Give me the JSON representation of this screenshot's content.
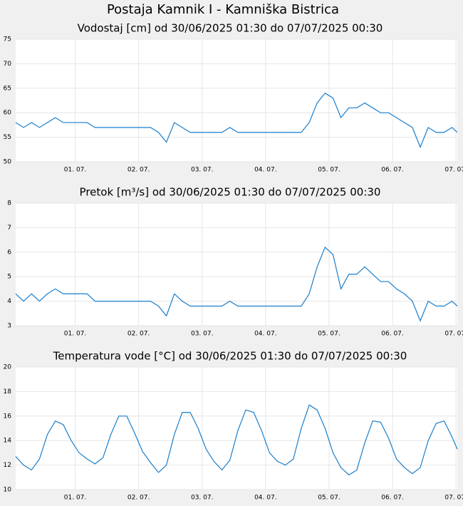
{
  "title": "Postaja Kamnik I - Kamniška Bistrica",
  "chart_data": [
    {
      "type": "line",
      "title": "Vodostaj [cm] od 30/06/2025 01:30 do 07/07/2025 00:30",
      "x": [
        "2025-06-30T01:30",
        "2025-06-30T04:30",
        "2025-06-30T07:30",
        "2025-06-30T10:30",
        "2025-06-30T13:30",
        "2025-06-30T16:30",
        "2025-06-30T19:30",
        "2025-06-30T22:30",
        "2025-07-01T01:30",
        "2025-07-01T04:30",
        "2025-07-01T07:30",
        "2025-07-01T10:30",
        "2025-07-01T13:30",
        "2025-07-01T16:30",
        "2025-07-01T19:30",
        "2025-07-01T22:30",
        "2025-07-02T01:30",
        "2025-07-02T04:30",
        "2025-07-02T07:30",
        "2025-07-02T10:30",
        "2025-07-02T13:30",
        "2025-07-02T16:30",
        "2025-07-02T19:30",
        "2025-07-02T22:30",
        "2025-07-03T01:30",
        "2025-07-03T04:30",
        "2025-07-03T07:30",
        "2025-07-03T10:30",
        "2025-07-03T13:30",
        "2025-07-03T16:30",
        "2025-07-03T19:30",
        "2025-07-03T22:30",
        "2025-07-04T01:30",
        "2025-07-04T04:30",
        "2025-07-04T07:30",
        "2025-07-04T10:30",
        "2025-07-04T13:30",
        "2025-07-04T16:30",
        "2025-07-04T19:30",
        "2025-07-04T22:30",
        "2025-07-05T01:30",
        "2025-07-05T04:30",
        "2025-07-05T07:30",
        "2025-07-05T10:30",
        "2025-07-05T13:30",
        "2025-07-05T16:30",
        "2025-07-05T19:30",
        "2025-07-05T22:30",
        "2025-07-06T01:30",
        "2025-07-06T04:30",
        "2025-07-06T07:30",
        "2025-07-06T10:30",
        "2025-07-06T13:30",
        "2025-07-06T16:30",
        "2025-07-06T19:30",
        "2025-07-06T22:30",
        "2025-07-07T00:30"
      ],
      "series": [
        {
          "color": "#1a7ecb",
          "values": [
            58,
            57,
            58,
            57,
            58,
            59,
            58,
            58,
            58,
            58,
            57,
            57,
            57,
            57,
            57,
            57,
            57,
            57,
            56,
            54,
            58,
            57,
            56,
            56,
            56,
            56,
            56,
            57,
            56,
            56,
            56,
            56,
            56,
            56,
            56,
            56,
            56,
            58,
            62,
            64,
            63,
            59,
            61,
            61,
            62,
            61,
            60,
            60,
            59,
            58,
            57,
            53,
            57,
            56,
            56,
            57,
            56
          ]
        }
      ],
      "xlim": [
        "2025-06-30T01:30",
        "2025-07-07T00:30"
      ],
      "xticks": [
        {
          "value": "2025-07-01T00:00",
          "label": "01. 07."
        },
        {
          "value": "2025-07-02T00:00",
          "label": "02. 07."
        },
        {
          "value": "2025-07-03T00:00",
          "label": "03. 07."
        },
        {
          "value": "2025-07-04T00:00",
          "label": "04. 07."
        },
        {
          "value": "2025-07-05T00:00",
          "label": "05. 07."
        },
        {
          "value": "2025-07-06T00:00",
          "label": "06. 07."
        },
        {
          "value": "2025-07-07T00:00",
          "label": "07. 07."
        }
      ],
      "ylim": [
        50,
        75
      ],
      "yticks": [
        50,
        55,
        60,
        65,
        70,
        75
      ],
      "grid": true
    },
    {
      "type": "line",
      "title": "Pretok [m³/s] od 30/06/2025 01:30 do 07/07/2025 00:30",
      "x": [
        "2025-06-30T01:30",
        "2025-06-30T04:30",
        "2025-06-30T07:30",
        "2025-06-30T10:30",
        "2025-06-30T13:30",
        "2025-06-30T16:30",
        "2025-06-30T19:30",
        "2025-06-30T22:30",
        "2025-07-01T01:30",
        "2025-07-01T04:30",
        "2025-07-01T07:30",
        "2025-07-01T10:30",
        "2025-07-01T13:30",
        "2025-07-01T16:30",
        "2025-07-01T19:30",
        "2025-07-01T22:30",
        "2025-07-02T01:30",
        "2025-07-02T04:30",
        "2025-07-02T07:30",
        "2025-07-02T10:30",
        "2025-07-02T13:30",
        "2025-07-02T16:30",
        "2025-07-02T19:30",
        "2025-07-02T22:30",
        "2025-07-03T01:30",
        "2025-07-03T04:30",
        "2025-07-03T07:30",
        "2025-07-03T10:30",
        "2025-07-03T13:30",
        "2025-07-03T16:30",
        "2025-07-03T19:30",
        "2025-07-03T22:30",
        "2025-07-04T01:30",
        "2025-07-04T04:30",
        "2025-07-04T07:30",
        "2025-07-04T10:30",
        "2025-07-04T13:30",
        "2025-07-04T16:30",
        "2025-07-04T19:30",
        "2025-07-04T22:30",
        "2025-07-05T01:30",
        "2025-07-05T04:30",
        "2025-07-05T07:30",
        "2025-07-05T10:30",
        "2025-07-05T13:30",
        "2025-07-05T16:30",
        "2025-07-05T19:30",
        "2025-07-05T22:30",
        "2025-07-06T01:30",
        "2025-07-06T04:30",
        "2025-07-06T07:30",
        "2025-07-06T10:30",
        "2025-07-06T13:30",
        "2025-07-06T16:30",
        "2025-07-06T19:30",
        "2025-07-06T22:30",
        "2025-07-07T00:30"
      ],
      "series": [
        {
          "color": "#1a7ecb",
          "values": [
            4.3,
            4.0,
            4.3,
            4.0,
            4.3,
            4.5,
            4.3,
            4.3,
            4.3,
            4.3,
            4.0,
            4.0,
            4.0,
            4.0,
            4.0,
            4.0,
            4.0,
            4.0,
            3.8,
            3.4,
            4.3,
            4.0,
            3.8,
            3.8,
            3.8,
            3.8,
            3.8,
            4.0,
            3.8,
            3.8,
            3.8,
            3.8,
            3.8,
            3.8,
            3.8,
            3.8,
            3.8,
            4.3,
            5.4,
            6.2,
            5.9,
            4.5,
            5.1,
            5.1,
            5.4,
            5.1,
            4.8,
            4.8,
            4.5,
            4.3,
            4.0,
            3.2,
            4.0,
            3.8,
            3.8,
            4.0,
            3.8
          ]
        }
      ],
      "xlim": [
        "2025-06-30T01:30",
        "2025-07-07T00:30"
      ],
      "xticks": [
        {
          "value": "2025-07-01T00:00",
          "label": "01. 07."
        },
        {
          "value": "2025-07-02T00:00",
          "label": "02. 07."
        },
        {
          "value": "2025-07-03T00:00",
          "label": "03. 07."
        },
        {
          "value": "2025-07-04T00:00",
          "label": "04. 07."
        },
        {
          "value": "2025-07-05T00:00",
          "label": "05. 07."
        },
        {
          "value": "2025-07-06T00:00",
          "label": "06. 07."
        },
        {
          "value": "2025-07-07T00:00",
          "label": "07. 07."
        }
      ],
      "ylim": [
        3,
        8
      ],
      "yticks": [
        3,
        4,
        5,
        6,
        7,
        8
      ],
      "grid": true
    },
    {
      "type": "line",
      "title": "Temperatura vode [°C] od 30/06/2025 01:30 do 07/07/2025 00:30",
      "x": [
        "2025-06-30T01:30",
        "2025-06-30T04:30",
        "2025-06-30T07:30",
        "2025-06-30T10:30",
        "2025-06-30T13:30",
        "2025-06-30T16:30",
        "2025-06-30T19:30",
        "2025-06-30T22:30",
        "2025-07-01T01:30",
        "2025-07-01T04:30",
        "2025-07-01T07:30",
        "2025-07-01T10:30",
        "2025-07-01T13:30",
        "2025-07-01T16:30",
        "2025-07-01T19:30",
        "2025-07-01T22:30",
        "2025-07-02T01:30",
        "2025-07-02T04:30",
        "2025-07-02T07:30",
        "2025-07-02T10:30",
        "2025-07-02T13:30",
        "2025-07-02T16:30",
        "2025-07-02T19:30",
        "2025-07-02T22:30",
        "2025-07-03T01:30",
        "2025-07-03T04:30",
        "2025-07-03T07:30",
        "2025-07-03T10:30",
        "2025-07-03T13:30",
        "2025-07-03T16:30",
        "2025-07-03T19:30",
        "2025-07-03T22:30",
        "2025-07-04T01:30",
        "2025-07-04T04:30",
        "2025-07-04T07:30",
        "2025-07-04T10:30",
        "2025-07-04T13:30",
        "2025-07-04T16:30",
        "2025-07-04T19:30",
        "2025-07-04T22:30",
        "2025-07-05T01:30",
        "2025-07-05T04:30",
        "2025-07-05T07:30",
        "2025-07-05T10:30",
        "2025-07-05T13:30",
        "2025-07-05T16:30",
        "2025-07-05T19:30",
        "2025-07-05T22:30",
        "2025-07-06T01:30",
        "2025-07-06T04:30",
        "2025-07-06T07:30",
        "2025-07-06T10:30",
        "2025-07-06T13:30",
        "2025-07-06T16:30",
        "2025-07-06T19:30",
        "2025-07-06T22:30",
        "2025-07-07T00:30"
      ],
      "series": [
        {
          "color": "#1a7ecb",
          "values": [
            12.7,
            12.0,
            11.6,
            12.5,
            14.5,
            15.6,
            15.3,
            14.0,
            13.0,
            12.5,
            12.1,
            12.6,
            14.5,
            16.0,
            16.0,
            14.6,
            13.1,
            12.2,
            11.4,
            12.0,
            14.5,
            16.3,
            16.3,
            15.0,
            13.3,
            12.3,
            11.6,
            12.4,
            14.8,
            16.5,
            16.3,
            14.8,
            13.0,
            12.3,
            12.0,
            12.5,
            15.0,
            16.9,
            16.5,
            15.0,
            13.0,
            11.8,
            11.2,
            11.6,
            13.8,
            15.6,
            15.5,
            14.2,
            12.5,
            11.8,
            11.3,
            11.8,
            14.0,
            15.4,
            15.6,
            14.3,
            13.3
          ]
        }
      ],
      "xlim": [
        "2025-06-30T01:30",
        "2025-07-07T00:30"
      ],
      "xticks": [
        {
          "value": "2025-07-01T00:00",
          "label": "01. 07."
        },
        {
          "value": "2025-07-02T00:00",
          "label": "02. 07."
        },
        {
          "value": "2025-07-03T00:00",
          "label": "03. 07."
        },
        {
          "value": "2025-07-04T00:00",
          "label": "04. 07."
        },
        {
          "value": "2025-07-05T00:00",
          "label": "05. 07."
        },
        {
          "value": "2025-07-06T00:00",
          "label": "06. 07."
        },
        {
          "value": "2025-07-07T00:00",
          "label": "07. 07."
        }
      ],
      "ylim": [
        10,
        20
      ],
      "yticks": [
        10,
        12,
        14,
        16,
        18,
        20
      ],
      "grid": true
    }
  ]
}
